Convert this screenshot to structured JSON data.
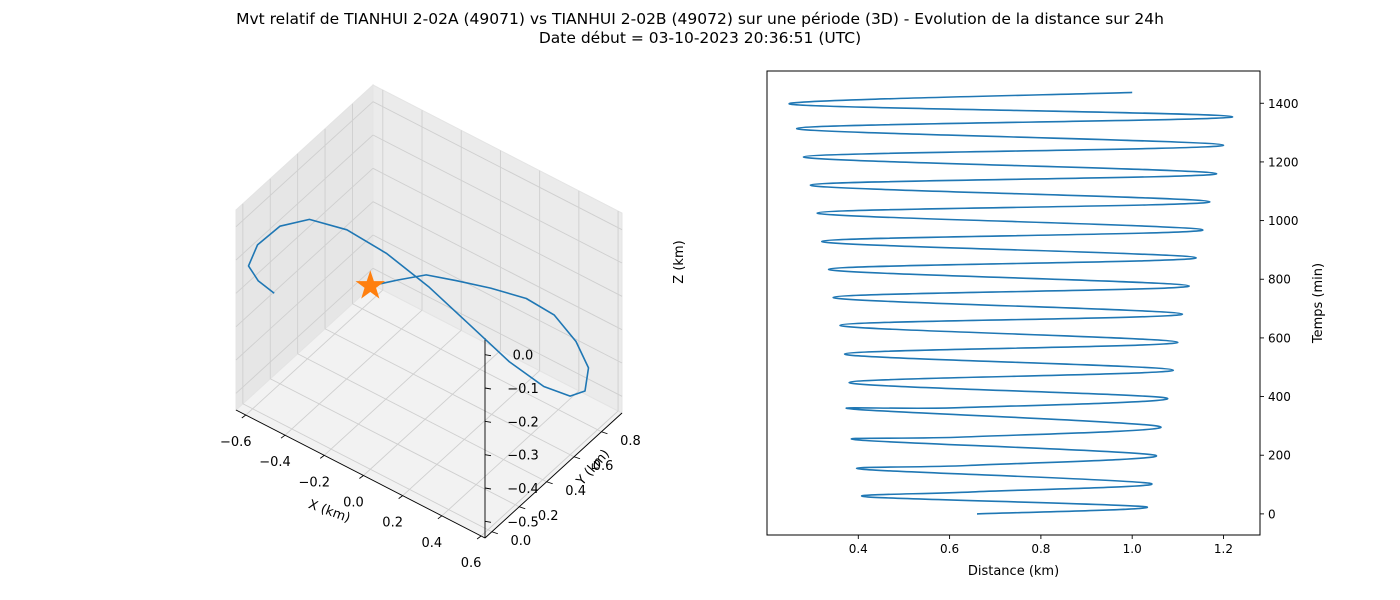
{
  "figure": {
    "title_line1": "Mvt relatif de TIANHUI 2-02A (49071) vs TIANHUI 2-02B (49072) sur une période (3D) - Evolution de la distance sur 24h",
    "title_line2": "Date début = 03-10-2023 20:36:51 (UTC)"
  },
  "colors": {
    "line": "#1f77b4",
    "marker": "#ff7f0e",
    "pane": "#f2f2f2",
    "grid": "#cfcfcf"
  },
  "chart_data": [
    {
      "type": "line3d",
      "xlabel": "X (km)",
      "ylabel": "Y (km)",
      "zlabel": "Z (km)",
      "xlim": [
        -0.65,
        0.62
      ],
      "ylim": [
        -0.05,
        0.95
      ],
      "zlim": [
        -0.55,
        0.05
      ],
      "xticks": [
        "−0.6",
        "−0.4",
        "−0.2",
        "0.0",
        "0.2",
        "0.4",
        "0.6"
      ],
      "yticks": [
        "0.0",
        "0.2",
        "0.4",
        "0.6",
        "0.8"
      ],
      "zticks": [
        "0.0",
        "−0.1",
        "−0.2",
        "−0.3",
        "−0.4",
        "−0.5"
      ],
      "marker": {
        "shape": "star",
        "x": 0.0,
        "y": 0.0,
        "z": 0.0
      },
      "trajectory": [
        [
          0.0,
          0.0,
          0.0
        ],
        [
          0.13,
          0.02,
          0.05
        ],
        [
          0.25,
          0.05,
          0.09
        ],
        [
          0.37,
          0.1,
          0.09
        ],
        [
          0.46,
          0.22,
          0.05
        ],
        [
          0.53,
          0.38,
          -0.02
        ],
        [
          0.56,
          0.54,
          -0.12
        ],
        [
          0.56,
          0.7,
          -0.26
        ],
        [
          0.54,
          0.82,
          -0.39
        ],
        [
          0.48,
          0.88,
          -0.5
        ],
        [
          0.39,
          0.9,
          -0.55
        ],
        [
          0.27,
          0.88,
          -0.55
        ],
        [
          0.13,
          0.83,
          -0.5
        ],
        [
          -0.02,
          0.76,
          -0.41
        ],
        [
          -0.16,
          0.66,
          -0.3
        ],
        [
          -0.3,
          0.55,
          -0.2
        ],
        [
          -0.42,
          0.43,
          -0.12
        ],
        [
          -0.52,
          0.3,
          -0.07
        ],
        [
          -0.58,
          0.17,
          -0.06
        ],
        [
          -0.61,
          0.05,
          -0.08
        ],
        [
          -0.6,
          -0.03,
          -0.11
        ],
        [
          -0.55,
          -0.03,
          -0.14
        ],
        [
          -0.49,
          0.0,
          -0.17
        ]
      ]
    },
    {
      "type": "line",
      "xlabel": "Distance (km)",
      "ylabel": "Temps (min)",
      "xlim": [
        0.2,
        1.28
      ],
      "ylim": [
        -72,
        1510
      ],
      "xticks": [
        0.4,
        0.6,
        0.8,
        1.0,
        1.2
      ],
      "yticks": [
        0,
        200,
        400,
        600,
        800,
        1000,
        1200,
        1400
      ],
      "grid": false,
      "y_axis_side": "right",
      "series": [
        {
          "points": [
            [
              0.66,
              0
            ],
            [
              1.03,
              24
            ],
            [
              0.42,
              58
            ],
            [
              0.65,
              75
            ],
            [
              1.04,
              104
            ],
            [
              0.41,
              152
            ],
            [
              0.64,
              165
            ],
            [
              1.05,
              200
            ],
            [
              0.4,
              252
            ],
            [
              0.63,
              262
            ],
            [
              1.06,
              298
            ],
            [
              0.39,
              357
            ],
            [
              0.62,
              362
            ],
            [
              1.075,
              395
            ],
            [
              0.38,
              448
            ],
            [
              1.09,
              490
            ],
            [
              0.37,
              545
            ],
            [
              1.1,
              585
            ],
            [
              0.36,
              643
            ],
            [
              1.11,
              681
            ],
            [
              0.345,
              738
            ],
            [
              1.125,
              777
            ],
            [
              0.335,
              834
            ],
            [
              1.14,
              873
            ],
            [
              0.32,
              929
            ],
            [
              1.155,
              968
            ],
            [
              0.31,
              1026
            ],
            [
              1.17,
              1064
            ],
            [
              0.295,
              1121
            ],
            [
              1.185,
              1160
            ],
            [
              0.28,
              1217
            ],
            [
              1.2,
              1257
            ],
            [
              0.265,
              1314
            ],
            [
              1.22,
              1354
            ],
            [
              0.25,
              1397
            ],
            [
              1.0,
              1437
            ]
          ]
        }
      ]
    }
  ]
}
